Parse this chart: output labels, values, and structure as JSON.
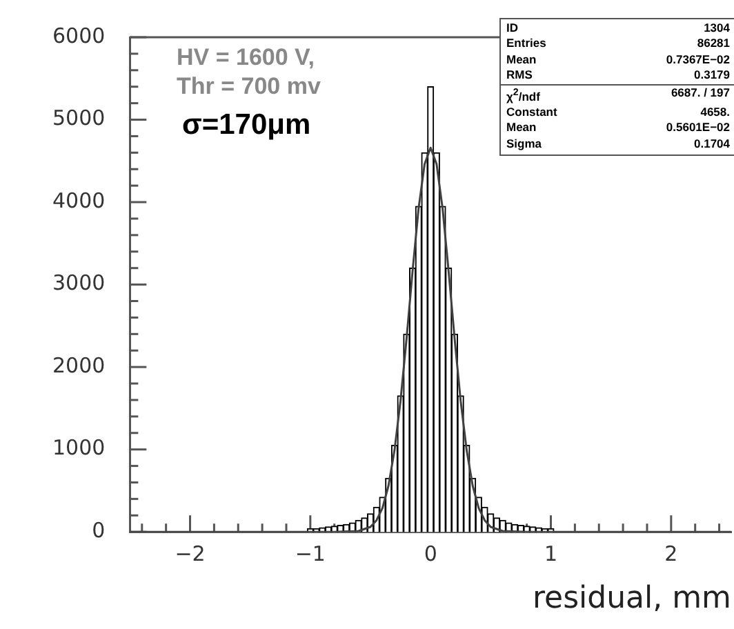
{
  "chart_data": {
    "type": "histogram",
    "xlabel": "residual, mm",
    "bins": [
      -1.025,
      -0.975,
      -0.925,
      -0.875,
      -0.825,
      -0.775,
      -0.725,
      -0.675,
      -0.625,
      -0.575,
      -0.525,
      -0.475,
      -0.425,
      -0.375,
      -0.325,
      -0.275,
      -0.225,
      -0.175,
      -0.125,
      -0.075,
      -0.025,
      0.025,
      0.075,
      0.125,
      0.175,
      0.225,
      0.275,
      0.325,
      0.375,
      0.425,
      0.475,
      0.525,
      0.575,
      0.625,
      0.675,
      0.725,
      0.775,
      0.825,
      0.875,
      0.925,
      0.975,
      1.025
    ],
    "values": [
      40,
      40,
      50,
      60,
      70,
      80,
      90,
      110,
      140,
      170,
      220,
      300,
      420,
      650,
      1050,
      1650,
      2400,
      3200,
      3950,
      4600,
      5400,
      4600,
      3950,
      3200,
      2400,
      1650,
      1050,
      650,
      420,
      300,
      220,
      170,
      140,
      110,
      90,
      80,
      70,
      60,
      50,
      40,
      40
    ],
    "color": "#000000",
    "series": [
      {
        "type": "line",
        "color": "#404040",
        "x": [
          -2.5,
          -1,
          -0.8,
          -0.6,
          -0.5,
          -0.45,
          -0.4,
          -0.35,
          -0.3,
          -0.25,
          -0.2,
          -0.15,
          -0.1,
          -0.05,
          0,
          0.05,
          0.1,
          0.15,
          0.2,
          0.25,
          0.3,
          0.35,
          0.4,
          0.45,
          0.5,
          0.6,
          0.8,
          1,
          2.5
        ],
        "values": [
          0,
          0,
          0,
          10,
          60,
          140,
          290,
          560,
          990,
          1590,
          2340,
          3160,
          3920,
          4460,
          4660,
          4460,
          3920,
          3160,
          2340,
          1590,
          990,
          560,
          290,
          140,
          60,
          10,
          0,
          0,
          0
        ]
      }
    ],
    "xlim": [
      -2.5,
      2.5
    ],
    "ylim": [
      0,
      6000
    ],
    "xticks": [
      {
        "value": -2.4,
        "label": null
      },
      {
        "value": -2.2,
        "label": null
      },
      {
        "value": -2,
        "label": "−2"
      },
      {
        "value": -1.8,
        "label": null
      },
      {
        "value": -1.6,
        "label": null
      },
      {
        "value": -1.4,
        "label": null
      },
      {
        "value": -1.2,
        "label": null
      },
      {
        "value": -1,
        "label": "−1"
      },
      {
        "value": -0.8,
        "label": null
      },
      {
        "value": -0.6,
        "label": null
      },
      {
        "value": -0.4,
        "label": null
      },
      {
        "value": -0.2,
        "label": null
      },
      0,
      {
        "value": 0.2,
        "label": null
      },
      {
        "value": 0.4,
        "label": null
      },
      {
        "value": 0.6,
        "label": null
      },
      {
        "value": 0.8,
        "label": null
      },
      1,
      {
        "value": 1.2,
        "label": null
      },
      {
        "value": 1.4,
        "label": null
      },
      {
        "value": 1.6,
        "label": null
      },
      {
        "value": 1.8,
        "label": null
      },
      2,
      {
        "value": 2.2,
        "label": null
      },
      {
        "value": 2.4,
        "label": null
      }
    ],
    "yticks": [
      0,
      {
        "value": 200,
        "label": null
      },
      {
        "value": 400,
        "label": null
      },
      {
        "value": 600,
        "label": null
      },
      {
        "value": 800,
        "label": null
      },
      1000,
      {
        "value": 1200,
        "label": null
      },
      {
        "value": 1400,
        "label": null
      },
      {
        "value": 1600,
        "label": null
      },
      {
        "value": 1800,
        "label": null
      },
      2000,
      {
        "value": 2200,
        "label": null
      },
      {
        "value": 2400,
        "label": null
      },
      {
        "value": 2600,
        "label": null
      },
      {
        "value": 2800,
        "label": null
      },
      3000,
      {
        "value": 3200,
        "label": null
      },
      {
        "value": 3400,
        "label": null
      },
      {
        "value": 3600,
        "label": null
      },
      {
        "value": 3800,
        "label": null
      },
      4000,
      {
        "value": 4200,
        "label": null
      },
      {
        "value": 4400,
        "label": null
      },
      {
        "value": 4600,
        "label": null
      },
      {
        "value": 4800,
        "label": null
      },
      5000,
      {
        "value": 5200,
        "label": null
      },
      {
        "value": 5400,
        "label": null
      },
      {
        "value": 5600,
        "label": null
      },
      {
        "value": 5800,
        "label": null
      },
      6000
    ],
    "grid": false,
    "legend": false,
    "annotations": [
      "HV = 1600 V,",
      "Thr = 700 mv",
      "σ=170μm",
      "ID 1304",
      "Entries 86281",
      "Mean 0.7367E−02",
      "RMS 0.3179",
      "χ$^{2}$/ndf 6687. / 197",
      "Constant 4658.",
      "Mean 0.5601E−02",
      "Sigma 0.1704"
    ]
  }
}
